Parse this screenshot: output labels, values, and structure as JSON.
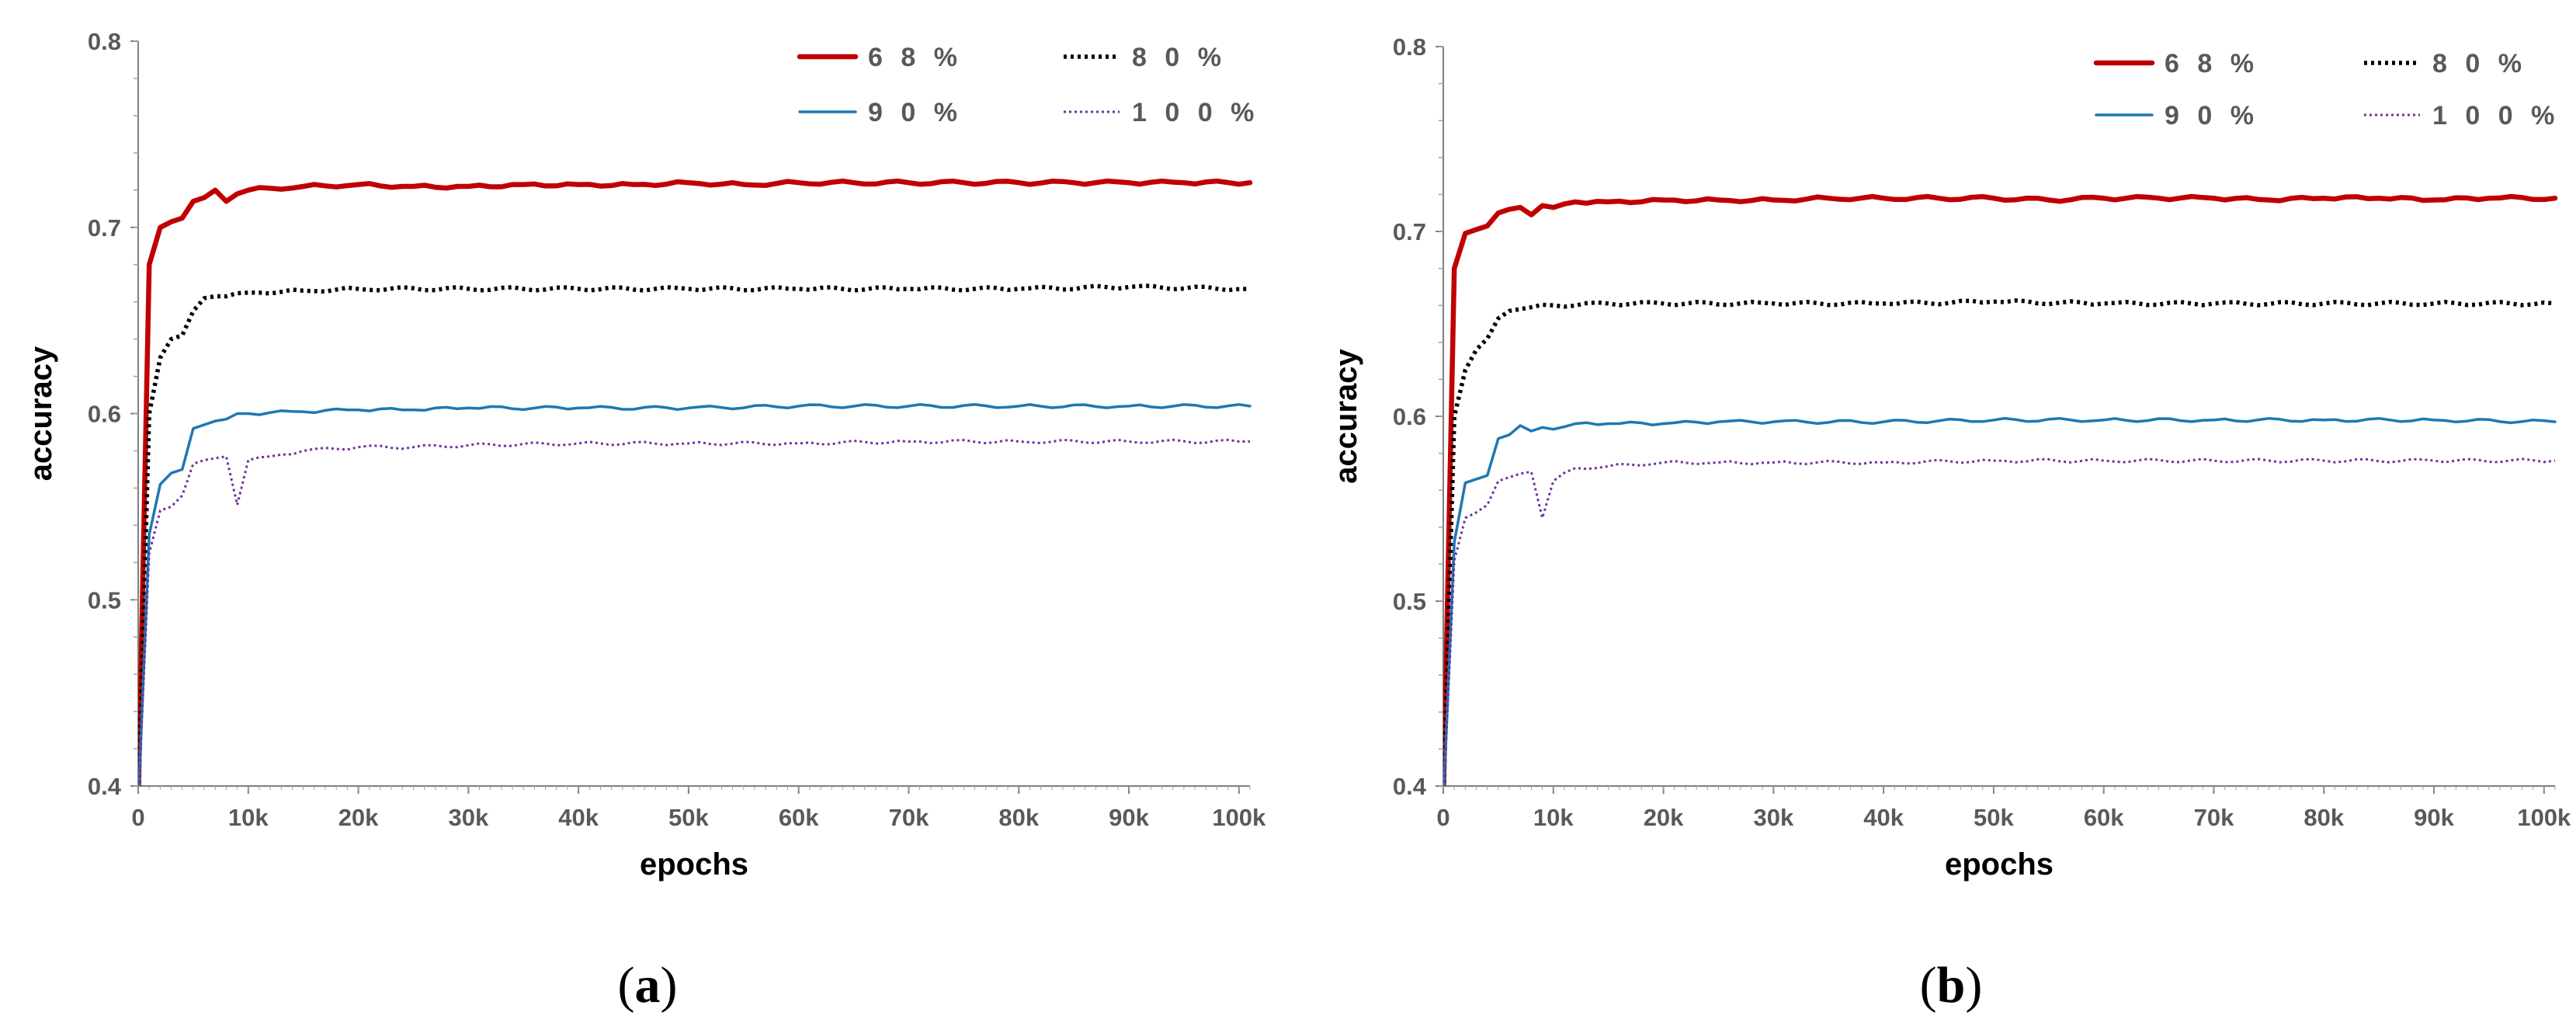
{
  "chart_data": [
    {
      "type": "line",
      "panel_label": "a",
      "panel_label_open": "(",
      "panel_label_close": ")",
      "xlabel": "epochs",
      "ylabel": "accuracy",
      "xlim": [
        0,
        101000
      ],
      "ylim": [
        0.4,
        0.8
      ],
      "x_ticks": [
        0,
        10000,
        20000,
        30000,
        40000,
        50000,
        60000,
        70000,
        80000,
        90000,
        100000
      ],
      "x_tick_labels": [
        "0",
        "10k",
        "20k",
        "30k",
        "40k",
        "50k",
        "60k",
        "70k",
        "80k",
        "90k",
        "100k"
      ],
      "y_ticks": [
        0.4,
        0.5,
        0.6,
        0.7,
        0.8
      ],
      "y_tick_labels": [
        "0.4",
        "0.5",
        "0.6",
        "0.7",
        "0.8"
      ],
      "legend_position": "top-right",
      "series": [
        {
          "name": "6 8 %",
          "color": "#C00000",
          "style": "solid-thick",
          "points": [
            [
              0,
              0.39
            ],
            [
              1000,
              0.68
            ],
            [
              2000,
              0.7
            ],
            [
              3000,
              0.703
            ],
            [
              4000,
              0.705
            ],
            [
              5000,
              0.714
            ],
            [
              6000,
              0.716
            ],
            [
              7000,
              0.72
            ],
            [
              8000,
              0.714
            ],
            [
              9000,
              0.718
            ],
            [
              10000,
              0.72
            ],
            [
              12000,
              0.721
            ],
            [
              15000,
              0.722
            ],
            [
              20000,
              0.723
            ],
            [
              25000,
              0.722
            ],
            [
              30000,
              0.722
            ],
            [
              35000,
              0.723
            ],
            [
              40000,
              0.723
            ],
            [
              45000,
              0.723
            ],
            [
              50000,
              0.724
            ],
            [
              55000,
              0.723
            ],
            [
              60000,
              0.724
            ],
            [
              65000,
              0.724
            ],
            [
              70000,
              0.724
            ],
            [
              75000,
              0.724
            ],
            [
              80000,
              0.724
            ],
            [
              85000,
              0.724
            ],
            [
              90000,
              0.724
            ],
            [
              95000,
              0.724
            ],
            [
              101000,
              0.724
            ]
          ]
        },
        {
          "name": "8 0 %",
          "color": "#000000",
          "style": "dotted-thick",
          "points": [
            [
              0,
              0.39
            ],
            [
              1000,
              0.6
            ],
            [
              2000,
              0.63
            ],
            [
              3000,
              0.64
            ],
            [
              4000,
              0.642
            ],
            [
              5000,
              0.655
            ],
            [
              6000,
              0.662
            ],
            [
              7000,
              0.663
            ],
            [
              8000,
              0.663
            ],
            [
              10000,
              0.665
            ],
            [
              15000,
              0.666
            ],
            [
              20000,
              0.667
            ],
            [
              30000,
              0.667
            ],
            [
              40000,
              0.667
            ],
            [
              50000,
              0.667
            ],
            [
              60000,
              0.667
            ],
            [
              70000,
              0.667
            ],
            [
              80000,
              0.667
            ],
            [
              90000,
              0.668
            ],
            [
              101000,
              0.667
            ]
          ]
        },
        {
          "name": "9 0 %",
          "color": "#1F77B4",
          "style": "solid",
          "points": [
            [
              0,
              0.39
            ],
            [
              1000,
              0.535
            ],
            [
              2000,
              0.562
            ],
            [
              3000,
              0.568
            ],
            [
              4000,
              0.57
            ],
            [
              5000,
              0.592
            ],
            [
              6000,
              0.594
            ],
            [
              7000,
              0.596
            ],
            [
              8000,
              0.597
            ],
            [
              9000,
              0.6
            ],
            [
              10000,
              0.6
            ],
            [
              15000,
              0.601
            ],
            [
              20000,
              0.602
            ],
            [
              25000,
              0.602
            ],
            [
              30000,
              0.603
            ],
            [
              40000,
              0.603
            ],
            [
              50000,
              0.603
            ],
            [
              60000,
              0.604
            ],
            [
              70000,
              0.604
            ],
            [
              80000,
              0.604
            ],
            [
              90000,
              0.604
            ],
            [
              101000,
              0.604
            ]
          ]
        },
        {
          "name": "1 0 0 %",
          "color": "#7030A0",
          "style": "dotted",
          "points": [
            [
              0,
              0.39
            ],
            [
              1000,
              0.525
            ],
            [
              2000,
              0.548
            ],
            [
              3000,
              0.55
            ],
            [
              4000,
              0.556
            ],
            [
              5000,
              0.573
            ],
            [
              6000,
              0.575
            ],
            [
              7000,
              0.576
            ],
            [
              8000,
              0.577
            ],
            [
              9000,
              0.551
            ],
            [
              10000,
              0.575
            ],
            [
              12000,
              0.577
            ],
            [
              15000,
              0.58
            ],
            [
              20000,
              0.582
            ],
            [
              25000,
              0.582
            ],
            [
              30000,
              0.583
            ],
            [
              40000,
              0.584
            ],
            [
              50000,
              0.584
            ],
            [
              60000,
              0.584
            ],
            [
              70000,
              0.585
            ],
            [
              80000,
              0.585
            ],
            [
              90000,
              0.585
            ],
            [
              101000,
              0.585
            ]
          ]
        }
      ]
    },
    {
      "type": "line",
      "panel_label": "b",
      "panel_label_open": "(",
      "panel_label_close": ")",
      "xlabel": "epochs",
      "ylabel": "accuracy",
      "xlim": [
        0,
        101000
      ],
      "ylim": [
        0.4,
        0.8
      ],
      "x_ticks": [
        0,
        10000,
        20000,
        30000,
        40000,
        50000,
        60000,
        70000,
        80000,
        90000,
        100000
      ],
      "x_tick_labels": [
        "0",
        "10k",
        "20k",
        "30k",
        "40k",
        "50k",
        "60k",
        "70k",
        "80k",
        "90k",
        "100k"
      ],
      "y_ticks": [
        0.4,
        0.5,
        0.6,
        0.7,
        0.8
      ],
      "y_tick_labels": [
        "0.4",
        "0.5",
        "0.6",
        "0.7",
        "0.8"
      ],
      "legend_position": "top-right",
      "series": [
        {
          "name": "6 8 %",
          "color": "#C00000",
          "style": "solid-thick",
          "points": [
            [
              0,
              0.39
            ],
            [
              1000,
              0.68
            ],
            [
              2000,
              0.699
            ],
            [
              3000,
              0.701
            ],
            [
              4000,
              0.703
            ],
            [
              5000,
              0.71
            ],
            [
              6000,
              0.712
            ],
            [
              7000,
              0.713
            ],
            [
              8000,
              0.709
            ],
            [
              9000,
              0.714
            ],
            [
              10000,
              0.713
            ],
            [
              12000,
              0.716
            ],
            [
              15000,
              0.716
            ],
            [
              20000,
              0.717
            ],
            [
              25000,
              0.717
            ],
            [
              30000,
              0.717
            ],
            [
              35000,
              0.718
            ],
            [
              40000,
              0.718
            ],
            [
              45000,
              0.718
            ],
            [
              50000,
              0.718
            ],
            [
              55000,
              0.717
            ],
            [
              60000,
              0.718
            ],
            [
              65000,
              0.718
            ],
            [
              70000,
              0.718
            ],
            [
              75000,
              0.717
            ],
            [
              80000,
              0.718
            ],
            [
              85000,
              0.718
            ],
            [
              90000,
              0.717
            ],
            [
              95000,
              0.718
            ],
            [
              101000,
              0.718
            ]
          ]
        },
        {
          "name": "8 0 %",
          "color": "#000000",
          "style": "dotted-thick",
          "points": [
            [
              0,
              0.39
            ],
            [
              1000,
              0.6
            ],
            [
              2000,
              0.625
            ],
            [
              3000,
              0.636
            ],
            [
              4000,
              0.642
            ],
            [
              5000,
              0.653
            ],
            [
              6000,
              0.657
            ],
            [
              7000,
              0.658
            ],
            [
              8000,
              0.659
            ],
            [
              10000,
              0.66
            ],
            [
              15000,
              0.661
            ],
            [
              20000,
              0.661
            ],
            [
              30000,
              0.661
            ],
            [
              40000,
              0.661
            ],
            [
              50000,
              0.662
            ],
            [
              60000,
              0.661
            ],
            [
              70000,
              0.661
            ],
            [
              80000,
              0.661
            ],
            [
              90000,
              0.661
            ],
            [
              101000,
              0.661
            ]
          ]
        },
        {
          "name": "9 0 %",
          "color": "#1F77B4",
          "style": "solid",
          "points": [
            [
              0,
              0.39
            ],
            [
              1000,
              0.532
            ],
            [
              2000,
              0.564
            ],
            [
              3000,
              0.566
            ],
            [
              4000,
              0.568
            ],
            [
              5000,
              0.588
            ],
            [
              6000,
              0.59
            ],
            [
              7000,
              0.595
            ],
            [
              8000,
              0.592
            ],
            [
              9000,
              0.594
            ],
            [
              10000,
              0.593
            ],
            [
              12000,
              0.596
            ],
            [
              15000,
              0.596
            ],
            [
              20000,
              0.596
            ],
            [
              25000,
              0.597
            ],
            [
              30000,
              0.597
            ],
            [
              40000,
              0.597
            ],
            [
              50000,
              0.598
            ],
            [
              60000,
              0.598
            ],
            [
              70000,
              0.598
            ],
            [
              80000,
              0.598
            ],
            [
              90000,
              0.598
            ],
            [
              101000,
              0.597
            ]
          ]
        },
        {
          "name": "1 0 0 %",
          "color": "#7030A0",
          "style": "dotted",
          "points": [
            [
              0,
              0.39
            ],
            [
              1000,
              0.522
            ],
            [
              2000,
              0.545
            ],
            [
              3000,
              0.548
            ],
            [
              4000,
              0.552
            ],
            [
              5000,
              0.565
            ],
            [
              6000,
              0.567
            ],
            [
              7000,
              0.569
            ],
            [
              8000,
              0.57
            ],
            [
              9000,
              0.545
            ],
            [
              10000,
              0.565
            ],
            [
              12000,
              0.572
            ],
            [
              15000,
              0.573
            ],
            [
              20000,
              0.575
            ],
            [
              25000,
              0.575
            ],
            [
              30000,
              0.575
            ],
            [
              40000,
              0.575
            ],
            [
              50000,
              0.576
            ],
            [
              60000,
              0.576
            ],
            [
              70000,
              0.576
            ],
            [
              80000,
              0.576
            ],
            [
              90000,
              0.576
            ],
            [
              101000,
              0.576
            ]
          ]
        }
      ]
    }
  ]
}
